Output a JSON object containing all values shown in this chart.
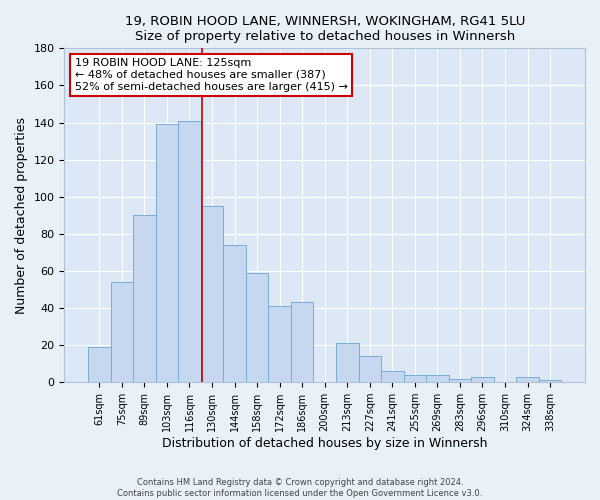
{
  "title": "19, ROBIN HOOD LANE, WINNERSH, WOKINGHAM, RG41 5LU",
  "subtitle": "Size of property relative to detached houses in Winnersh",
  "xlabel": "Distribution of detached houses by size in Winnersh",
  "ylabel": "Number of detached properties",
  "bar_labels": [
    "61sqm",
    "75sqm",
    "89sqm",
    "103sqm",
    "116sqm",
    "130sqm",
    "144sqm",
    "158sqm",
    "172sqm",
    "186sqm",
    "200sqm",
    "213sqm",
    "227sqm",
    "241sqm",
    "255sqm",
    "269sqm",
    "283sqm",
    "296sqm",
    "310sqm",
    "324sqm",
    "338sqm"
  ],
  "bar_values": [
    19,
    54,
    90,
    139,
    141,
    95,
    74,
    59,
    41,
    43,
    0,
    21,
    14,
    6,
    4,
    4,
    2,
    3,
    0,
    3,
    1
  ],
  "bar_color": "#c5d8f0",
  "bar_edge_color": "#7aadd4",
  "ylim": [
    0,
    180
  ],
  "yticks": [
    0,
    20,
    40,
    60,
    80,
    100,
    120,
    140,
    160,
    180
  ],
  "vline_color": "#cc0000",
  "vline_position": 4.575,
  "annotation_title": "19 ROBIN HOOD LANE: 125sqm",
  "annotation_line1": "← 48% of detached houses are smaller (387)",
  "annotation_line2": "52% of semi-detached houses are larger (415) →",
  "annotation_box_color": "#ffffff",
  "annotation_box_edge_color": "#cc0000",
  "footer1": "Contains HM Land Registry data © Crown copyright and database right 2024.",
  "footer2": "Contains public sector information licensed under the Open Government Licence v3.0.",
  "background_color": "#e8f0f8",
  "plot_background_color": "#dce8f5",
  "grid_color": "#ffffff",
  "spine_color": "#b0c0d8"
}
